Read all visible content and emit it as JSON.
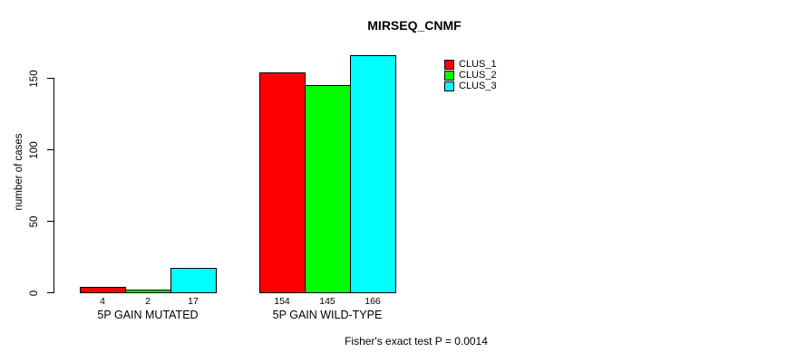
{
  "title": "MIRSEQ_CNMF",
  "footer": "Fisher's exact test P = 0.0014",
  "colors": {
    "clus_1": "#ff0000",
    "clus_2": "#00ff00",
    "clus_3": "#00ffff",
    "axis": "#000000",
    "background": "#ffffff"
  },
  "chart_data": {
    "type": "bar",
    "title": "MIRSEQ_CNMF",
    "xlabel": "",
    "ylabel": "number of cases",
    "categories": [
      "5P GAIN MUTATED",
      "5P GAIN WILD-TYPE"
    ],
    "series": [
      {
        "name": "CLUS_1",
        "color": "#ff0000",
        "values": [
          4,
          154
        ]
      },
      {
        "name": "CLUS_2",
        "color": "#00ff00",
        "values": [
          2,
          145
        ]
      },
      {
        "name": "CLUS_3",
        "color": "#00ffff",
        "values": [
          17,
          166
        ]
      }
    ],
    "bar_value_labels": [
      [
        "4",
        "2",
        "17"
      ],
      [
        "154",
        "145",
        "166"
      ]
    ],
    "yticks": [
      0,
      50,
      100,
      150
    ],
    "ylim": [
      0,
      166
    ],
    "grid": false,
    "legend_position": "top-right",
    "annotation": "Fisher's exact test P = 0.0014"
  },
  "legend": {
    "items": [
      {
        "label": "CLUS_1",
        "color": "#ff0000"
      },
      {
        "label": "CLUS_2",
        "color": "#00ff00"
      },
      {
        "label": "CLUS_3",
        "color": "#00ffff"
      }
    ]
  }
}
